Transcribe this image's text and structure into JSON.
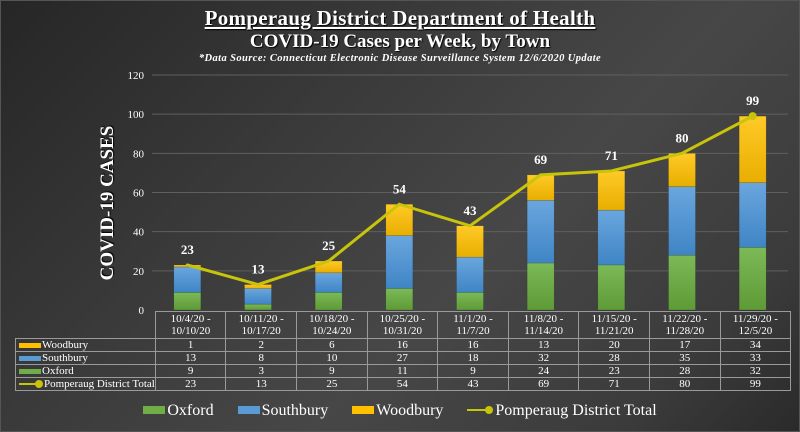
{
  "chart_data": {
    "type": "bar",
    "stacked": true,
    "title": "Pomperaug District Department of Health",
    "subtitle": "COVID-19 Cases per Week, by Town",
    "source_note": "*Data Source: Connecticut Electronic Disease Surveillance System 12/6/2020 Update",
    "xlabel": "",
    "ylabel": "COVID-19 CASES",
    "ylim": [
      0,
      120
    ],
    "yticks": [
      0,
      20,
      40,
      60,
      80,
      100,
      120
    ],
    "ytick_labels": [
      "0",
      "20",
      "40",
      "60",
      "80",
      "100",
      "120"
    ],
    "grid": true,
    "legend_position": "bottom",
    "categories": [
      [
        "10/4/20 -",
        "10/10/20"
      ],
      [
        "10/11/20 -",
        "10/17/20"
      ],
      [
        "10/18/20 -",
        "10/24/20"
      ],
      [
        "10/25/20 -",
        "10/31/20"
      ],
      [
        "11/1/20 -",
        "11/7/20"
      ],
      [
        "11/8/20 -",
        "11/14/20"
      ],
      [
        "11/15/20 -",
        "11/21/20"
      ],
      [
        "11/22/20 -",
        "11/28/20"
      ],
      [
        "11/29/20 -",
        "12/5/20"
      ]
    ],
    "series": [
      {
        "name": "Oxford",
        "kind": "bar",
        "color": "#70AD47",
        "values": [
          9,
          3,
          9,
          11,
          9,
          24,
          23,
          28,
          32
        ]
      },
      {
        "name": "Southbury",
        "kind": "bar",
        "color": "#5B9BD5",
        "values": [
          13,
          8,
          10,
          27,
          18,
          32,
          28,
          35,
          33
        ]
      },
      {
        "name": "Woodbury",
        "kind": "bar",
        "color": "#FFC000",
        "values": [
          1,
          2,
          6,
          16,
          16,
          13,
          20,
          17,
          34
        ]
      },
      {
        "name": "Pomperaug District Total",
        "kind": "line",
        "color": "#C8C40A",
        "values": [
          23,
          13,
          25,
          54,
          43,
          69,
          71,
          80,
          99
        ]
      }
    ],
    "data_labels": [
      "23",
      "13",
      "25",
      "54",
      "43",
      "69",
      "71",
      "80",
      "99"
    ],
    "table_rows": [
      {
        "label": "Woodbury",
        "marker": "bar",
        "color": "#FFC000",
        "values": [
          "1",
          "2",
          "6",
          "16",
          "16",
          "13",
          "20",
          "17",
          "34"
        ]
      },
      {
        "label": "Southbury",
        "marker": "bar",
        "color": "#5B9BD5",
        "values": [
          "13",
          "8",
          "10",
          "27",
          "18",
          "32",
          "28",
          "35",
          "33"
        ]
      },
      {
        "label": "Oxford",
        "marker": "bar",
        "color": "#70AD47",
        "values": [
          "9",
          "3",
          "9",
          "11",
          "9",
          "24",
          "23",
          "28",
          "32"
        ]
      },
      {
        "label": "Pomperaug District Total",
        "marker": "line",
        "color": "#C8C40A",
        "values": [
          "23",
          "13",
          "25",
          "54",
          "43",
          "69",
          "71",
          "80",
          "99"
        ]
      }
    ],
    "legend": [
      {
        "label": "Oxford",
        "marker": "bar",
        "color": "#70AD47"
      },
      {
        "label": "Southbury",
        "marker": "bar",
        "color": "#5B9BD5"
      },
      {
        "label": "Woodbury",
        "marker": "bar",
        "color": "#FFC000"
      },
      {
        "label": "Pomperaug District Total",
        "marker": "line",
        "color": "#C8C40A"
      }
    ]
  }
}
